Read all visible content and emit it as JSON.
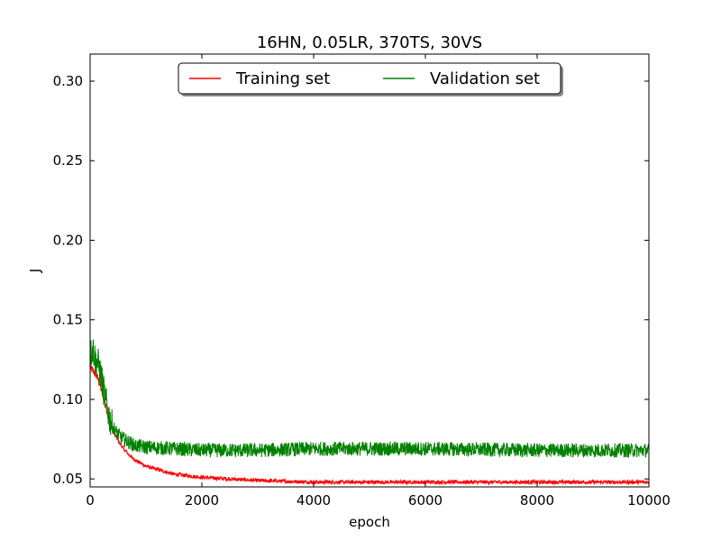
{
  "chart_data": {
    "type": "line",
    "title": "16HN, 0.05LR, 370TS, 30VS",
    "xlabel": "epoch",
    "ylabel": "J",
    "xlim": [
      0,
      10000
    ],
    "ylim": [
      0.045,
      0.317
    ],
    "xticks": [
      0,
      2000,
      4000,
      6000,
      8000,
      10000
    ],
    "yticks": [
      0.05,
      0.1,
      0.15,
      0.2,
      0.25,
      0.3
    ],
    "xtick_labels": [
      "0",
      "2000",
      "4000",
      "6000",
      "8000",
      "10000"
    ],
    "ytick_labels": [
      "0.05",
      "0.10",
      "0.15",
      "0.20",
      "0.25",
      "0.30"
    ],
    "grid": false,
    "legend_position": "top-center",
    "series": [
      {
        "name": "Training set",
        "color": "#ff0000",
        "x": [
          0,
          50,
          100,
          150,
          200,
          250,
          300,
          350,
          400,
          500,
          600,
          700,
          800,
          1000,
          1200,
          1500,
          2000,
          3000,
          4000,
          6000,
          8000,
          10000
        ],
        "y": [
          0.12,
          0.118,
          0.116,
          0.112,
          0.106,
          0.1,
          0.093,
          0.087,
          0.081,
          0.074,
          0.069,
          0.065,
          0.062,
          0.058,
          0.056,
          0.053,
          0.051,
          0.049,
          0.048,
          0.048,
          0.048,
          0.048
        ]
      },
      {
        "name": "Validation set",
        "color": "#008000",
        "x": [
          0,
          50,
          100,
          150,
          200,
          250,
          300,
          350,
          400,
          500,
          600,
          700,
          800,
          1000,
          1500,
          2000,
          3000,
          4000,
          6000,
          8000,
          10000
        ],
        "y": [
          0.128,
          0.132,
          0.124,
          0.122,
          0.114,
          0.104,
          0.096,
          0.088,
          0.083,
          0.078,
          0.075,
          0.073,
          0.071,
          0.07,
          0.069,
          0.068,
          0.068,
          0.069,
          0.069,
          0.068,
          0.068
        ]
      }
    ]
  }
}
